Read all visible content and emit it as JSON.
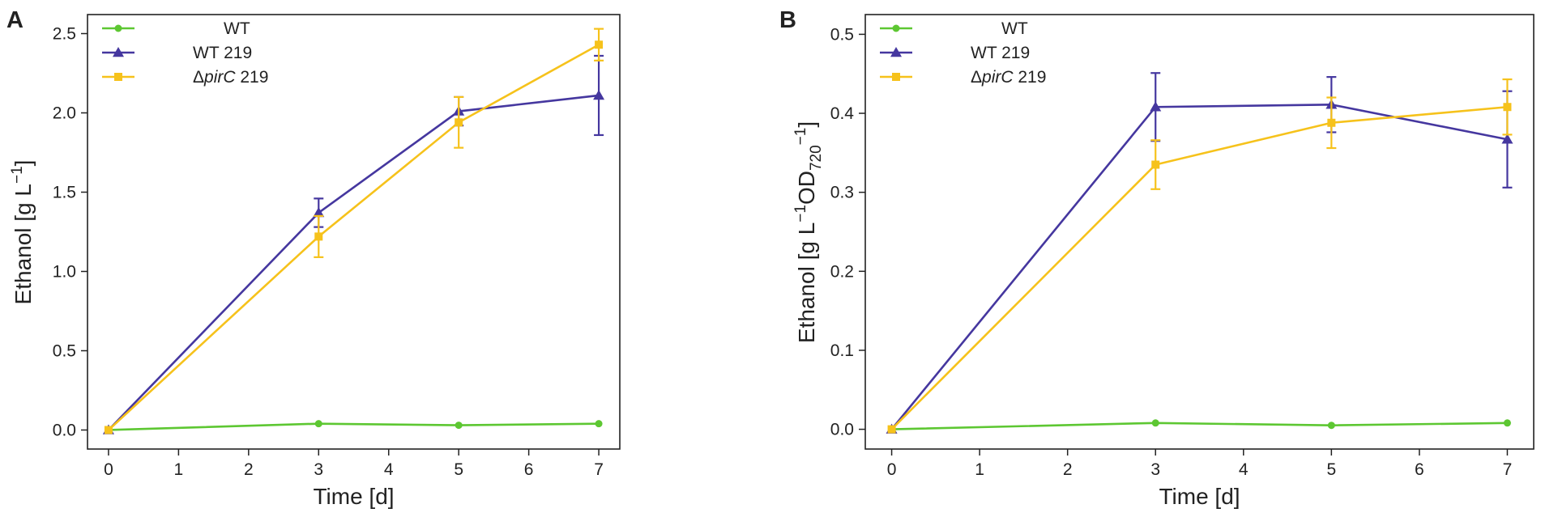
{
  "colors": {
    "wt": "#5dc732",
    "wt219": "#45379f",
    "pirc219": "#f6c21b",
    "axis": "#222222"
  },
  "chart_data": [
    {
      "panel": "A",
      "type": "line",
      "title": "",
      "xlabel": "Time [d]",
      "ylabel_parts": [
        "Ethanol [g L",
        "−1",
        "]"
      ],
      "xlim": [
        -0.3,
        7.3
      ],
      "ylim": [
        -0.12,
        2.62
      ],
      "xticks": [
        0,
        1,
        2,
        3,
        4,
        5,
        6,
        7
      ],
      "yticks": [
        0,
        0.5,
        1.0,
        1.5,
        2.0,
        2.5
      ],
      "ytick_labels": [
        "0.0",
        "0.5",
        "1.0",
        "1.5",
        "2.0",
        "2.5"
      ],
      "x": [
        0,
        3,
        5,
        7
      ],
      "legend_position": "top-left",
      "series": [
        {
          "key": "wt",
          "name": "WT",
          "italic_part": "",
          "suffix": "",
          "marker": "circle",
          "values": [
            0.0,
            0.04,
            0.03,
            0.04
          ],
          "errors": [
            0.005,
            0.01,
            0.01,
            0.01
          ]
        },
        {
          "key": "wt219",
          "name": "WT 219",
          "italic_part": "",
          "suffix": "",
          "marker": "triangle",
          "values": [
            0.0,
            1.37,
            2.01,
            2.11
          ],
          "errors": [
            0.005,
            0.09,
            0.09,
            0.25
          ]
        },
        {
          "key": "pirc219",
          "name": "ΔpirC 219",
          "prefix": "Δ",
          "italic_part": "pirC",
          "suffix": " 219",
          "marker": "square",
          "values": [
            0.0,
            1.22,
            1.94,
            2.43
          ],
          "errors": [
            0.005,
            0.13,
            0.16,
            0.1
          ]
        }
      ]
    },
    {
      "panel": "B",
      "type": "line",
      "title": "",
      "xlabel": "Time [d]",
      "ylabel_parts": [
        "Ethanol [g L",
        "−1",
        "OD",
        "720",
        "−1",
        "]"
      ],
      "xlim": [
        -0.3,
        7.3
      ],
      "ylim": [
        -0.025,
        0.525
      ],
      "xticks": [
        0,
        1,
        2,
        3,
        4,
        5,
        6,
        7
      ],
      "yticks": [
        0,
        0.1,
        0.2,
        0.3,
        0.4,
        0.5
      ],
      "ytick_labels": [
        "0.0",
        "0.1",
        "0.2",
        "0.3",
        "0.4",
        "0.5"
      ],
      "x": [
        0,
        3,
        5,
        7
      ],
      "legend_position": "top-left",
      "series": [
        {
          "key": "wt",
          "name": "WT",
          "italic_part": "",
          "suffix": "",
          "marker": "circle",
          "values": [
            0.0,
            0.008,
            0.005,
            0.008
          ],
          "errors": [
            0.001,
            0.002,
            0.001,
            0.002
          ]
        },
        {
          "key": "wt219",
          "name": "WT 219",
          "italic_part": "",
          "suffix": "",
          "marker": "triangle",
          "values": [
            0.0,
            0.408,
            0.411,
            0.367
          ],
          "errors": [
            0.001,
            0.043,
            0.035,
            0.061
          ]
        },
        {
          "key": "pirc219",
          "name": "ΔpirC 219",
          "prefix": "Δ",
          "italic_part": "pirC",
          "suffix": " 219",
          "marker": "square",
          "values": [
            0.0,
            0.335,
            0.388,
            0.408
          ],
          "errors": [
            0.001,
            0.031,
            0.032,
            0.035
          ]
        }
      ]
    }
  ]
}
